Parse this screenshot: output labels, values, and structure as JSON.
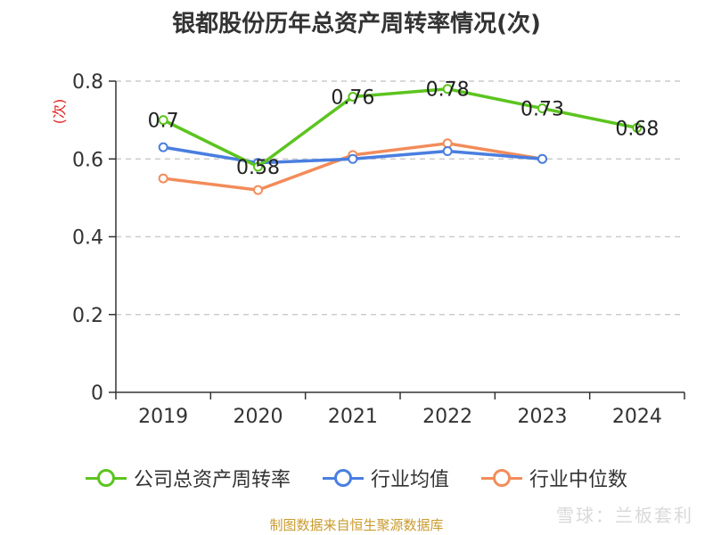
{
  "colors": {
    "company": "#5cc41f",
    "industry_avg": "#4a7ee0",
    "industry_median": "#f28c5a",
    "axis": "#333333",
    "grid": "#cccccc",
    "ylabel": "#e02020",
    "source": "#c99b2e"
  },
  "chart_data": {
    "type": "line",
    "title": "银都股份历年总资产周转率情况(次)",
    "ylabel": "(次)",
    "xlabel": "",
    "categories": [
      "2019",
      "2020",
      "2021",
      "2022",
      "2023",
      "2024"
    ],
    "ylim": [
      0,
      0.8
    ],
    "yticks": [
      "0",
      "0.2",
      "0.4",
      "0.6",
      "0.8"
    ],
    "grid": true,
    "legend_position": "bottom",
    "series": [
      {
        "name": "公司总资产周转率",
        "values": [
          0.7,
          0.58,
          0.76,
          0.78,
          0.73,
          0.68
        ],
        "labels": [
          "0.7",
          "0.58",
          "0.76",
          "0.78",
          "0.73",
          "0.68"
        ],
        "color_key": "company"
      },
      {
        "name": "行业均值",
        "values": [
          0.63,
          0.59,
          0.6,
          0.62,
          0.6,
          null
        ],
        "color_key": "industry_avg"
      },
      {
        "name": "行业中位数",
        "values": [
          0.55,
          0.52,
          0.61,
          0.64,
          0.6,
          null
        ],
        "color_key": "industry_median"
      }
    ]
  },
  "source_note": "制图数据来自恒生聚源数据库",
  "watermark": "雪球：兰板套利"
}
